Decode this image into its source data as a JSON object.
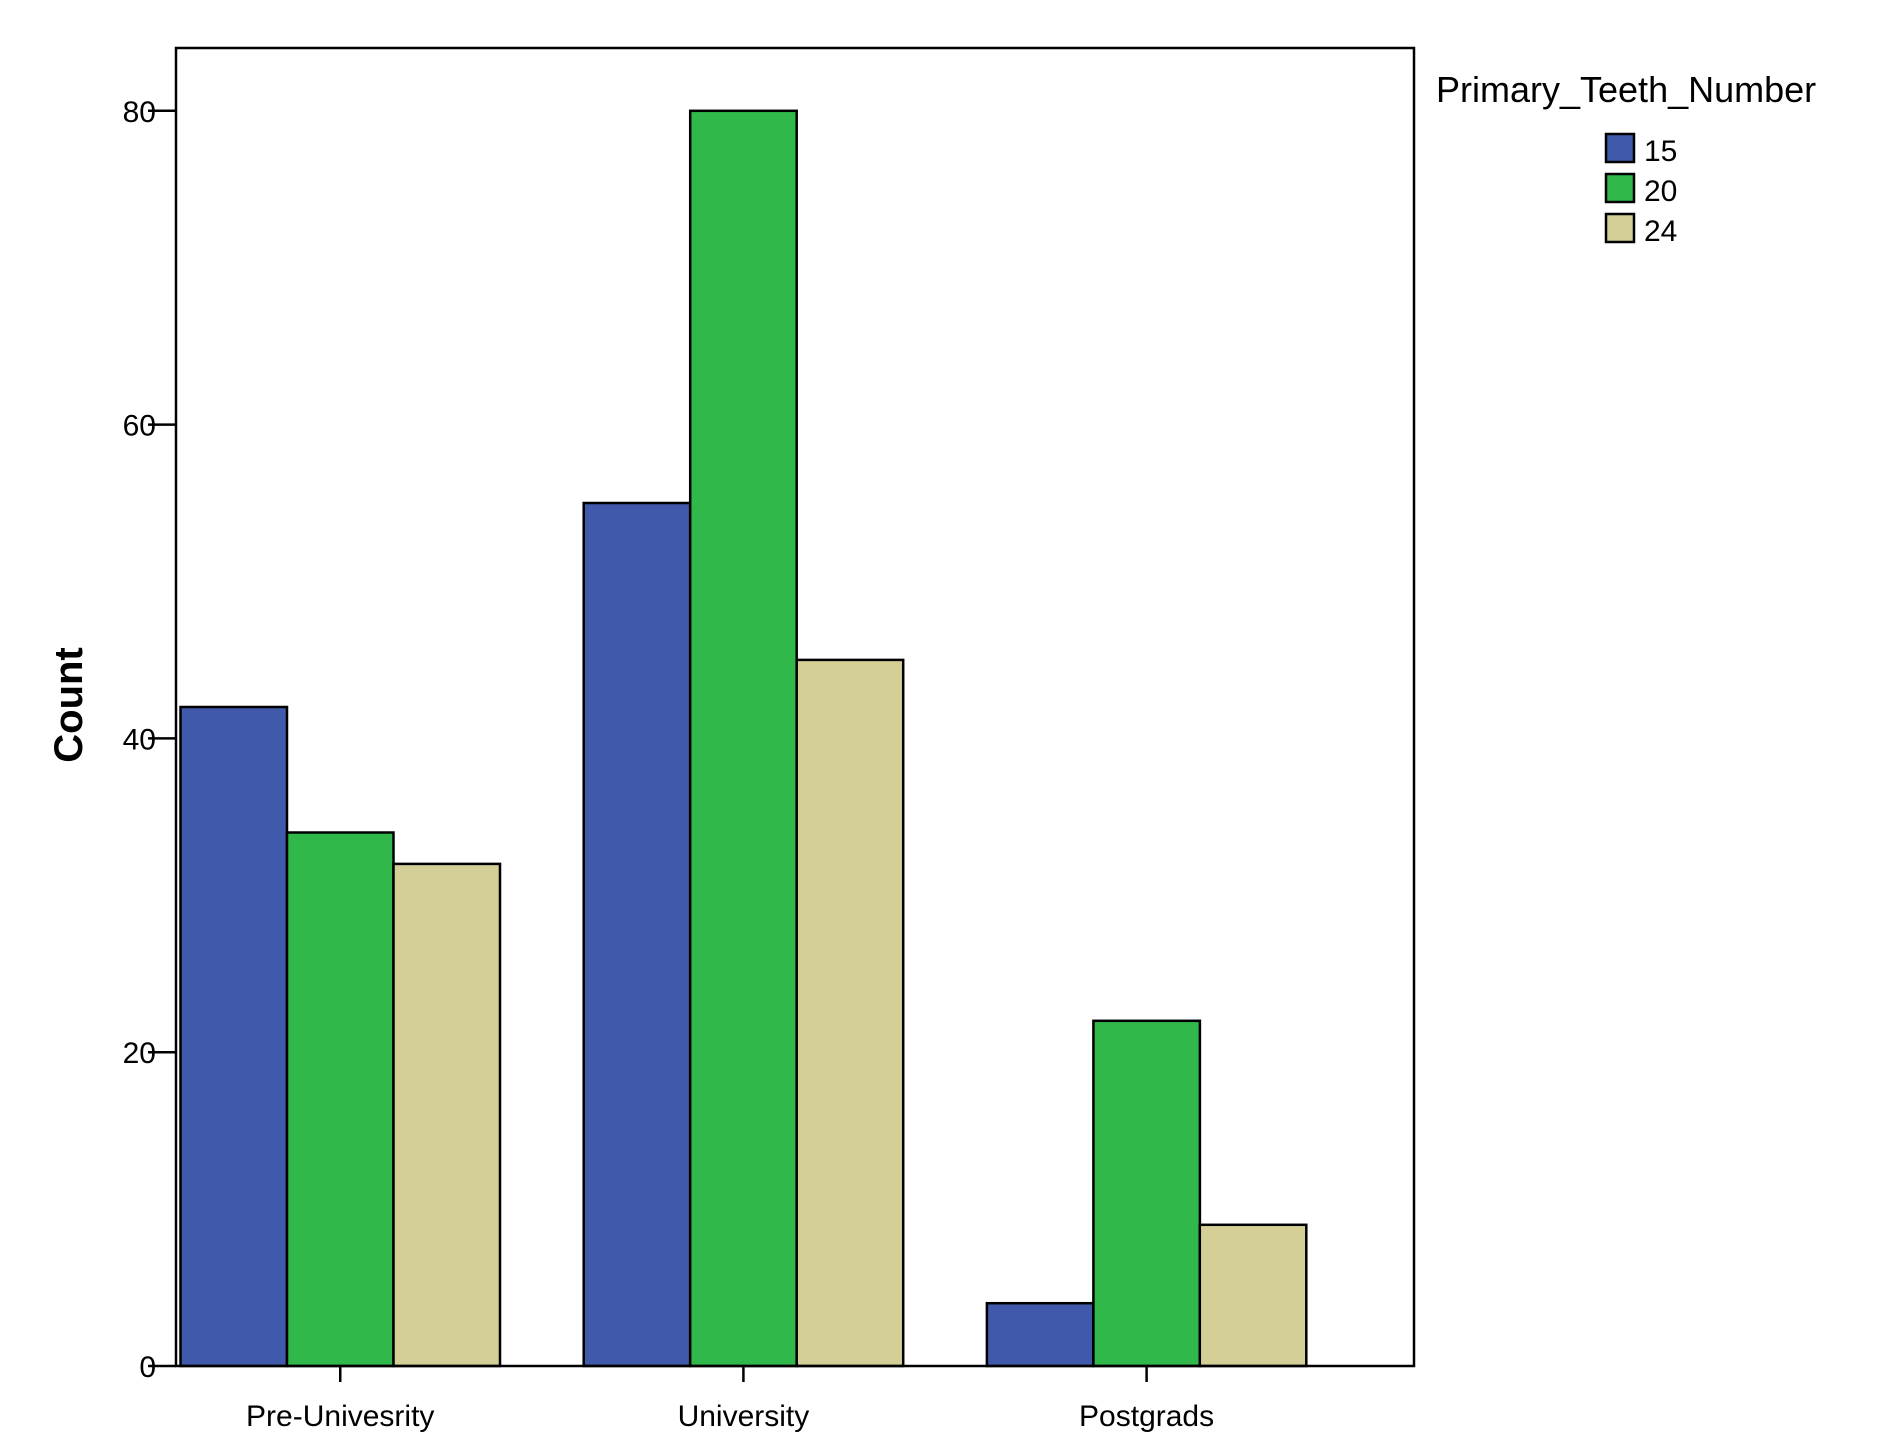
{
  "chart_data": {
    "type": "bar",
    "title": "",
    "xlabel": "",
    "ylabel": "Count",
    "categories": [
      "Pre-Univesrity",
      "University",
      "Postgrads"
    ],
    "series": [
      {
        "name": "15",
        "color": "#4059ab",
        "values": [
          42,
          55,
          4
        ]
      },
      {
        "name": "20",
        "color": "#30b84a",
        "values": [
          34,
          80,
          22
        ]
      },
      {
        "name": "24",
        "color": "#d4cf97",
        "values": [
          32,
          45,
          9
        ]
      }
    ],
    "ylim": [
      0,
      84
    ],
    "yticks": [
      0,
      20,
      40,
      60,
      80
    ],
    "grid": false,
    "legend": {
      "title": "Primary_Teeth_Number",
      "position": "top-right"
    }
  }
}
